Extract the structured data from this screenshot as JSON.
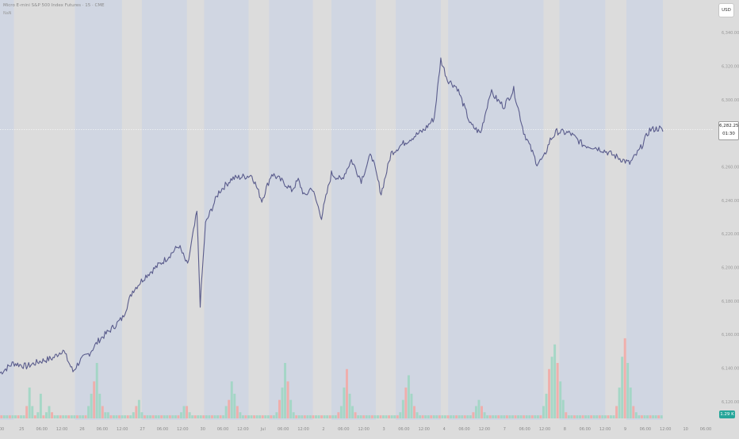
{
  "header": {
    "title": "Micro E-mini S&P 500 Index Futures · 15 · CME",
    "subtitle": "NaN",
    "currency": "USD"
  },
  "last_price": {
    "value": "6,282.25",
    "countdown": "01:30"
  },
  "volume_badge": "1.29 K",
  "colors": {
    "background": "#dcdcdc",
    "session_band": "#d0d6e2",
    "price_line": "#5a5c8c",
    "volume_up": "#9fd6c3",
    "volume_down": "#f2aaa6",
    "badge_green": "#26a69a"
  },
  "chart_data": {
    "type": "line",
    "title": "Micro E-mini S&P 500 Index Futures · 15 · CME",
    "x_tick_labels": [
      "00",
      "25",
      "06:00",
      "12:00",
      "26",
      "06:00",
      "12:00",
      "27",
      "06:00",
      "12:00",
      "30",
      "06:00",
      "12:00",
      "Jul",
      "06:00",
      "12:00",
      "2",
      "06:00",
      "12:00",
      "3",
      "06:00",
      "12:00",
      "4",
      "06:00",
      "12:00",
      "7",
      "06:00",
      "12:00",
      "8",
      "06:00",
      "12:00",
      "9",
      "06:00",
      "12:00",
      "10",
      "06:00"
    ],
    "y_tick_labels": [
      "6,120.00",
      "6,140.00",
      "6,160.00",
      "6,180.00",
      "6,200.00",
      "6,220.00",
      "6,240.00",
      "6,260.00",
      "6,280.00",
      "6,300.00",
      "6,320.00",
      "6,340.00"
    ],
    "ylim": [
      6110,
      6350
    ],
    "y_ticks": [
      6120,
      6140,
      6160,
      6180,
      6200,
      6220,
      6240,
      6260,
      6280,
      6300,
      6320,
      6340
    ],
    "x_range": [
      0,
      100
    ],
    "series": [
      {
        "x": [
          0,
          2,
          4,
          6,
          8,
          9.5,
          11,
          12,
          13.5,
          15,
          17,
          18.5,
          20,
          22,
          25,
          27,
          28.3,
          29.7,
          30.2,
          31,
          33,
          35,
          36.5,
          38,
          39.5,
          41,
          43,
          44,
          45,
          46,
          47,
          48.5,
          50,
          51.5,
          53,
          54.5,
          56,
          57.5,
          59,
          60.5,
          62,
          64,
          65.5,
          66.5,
          67.5,
          69,
          71,
          72.5,
          74,
          75,
          76,
          77.5,
          79,
          81,
          82,
          83,
          84,
          86,
          88,
          89.5,
          91,
          93,
          95,
          96.5,
          98,
          99.5,
          100
        ],
        "y": [
          6137,
          6143,
          6141,
          6144,
          6146,
          6151,
          6138,
          6144,
          6149,
          6157,
          6164,
          6170,
          6186,
          6195,
          6205,
          6213,
          6201,
          6233,
          6178,
          6226,
          6245,
          6253,
          6254,
          6255,
          6240,
          6256,
          6250,
          6246,
          6252,
          6242,
          6248,
          6230,
          6256,
          6252,
          6264,
          6252,
          6268,
          6244,
          6268,
          6273,
          6277,
          6282,
          6289,
          6324,
          6312,
          6307,
          6285,
          6280,
          6305,
          6300,
          6296,
          6306,
          6281,
          6262,
          6265,
          6276,
          6281,
          6280,
          6273,
          6272,
          6270,
          6266,
          6262,
          6270,
          6282,
          6283,
          6281
        ]
      }
    ],
    "volume_max": 1.8,
    "volume": [
      0.05,
      0.05,
      0.05,
      0.05,
      0.05,
      0.05,
      0.05,
      0.05,
      0.05,
      0.2,
      0.5,
      0.2,
      0.05,
      0.1,
      0.4,
      0.05,
      0.1,
      0.2,
      0.1,
      0.05,
      0.05,
      0.05,
      0.05,
      0.05,
      0.05,
      0.05,
      0.05,
      0.05,
      0.05,
      0.05,
      0.05,
      0.2,
      0.4,
      0.6,
      0.9,
      0.4,
      0.2,
      0.1,
      0.1,
      0.05,
      0.05,
      0.05,
      0.05,
      0.05,
      0.05,
      0.05,
      0.05,
      0.1,
      0.2,
      0.3,
      0.1,
      0.05,
      0.05,
      0.05,
      0.05,
      0.05,
      0.05,
      0.05,
      0.05,
      0.05,
      0.05,
      0.05,
      0.05,
      0.05,
      0.1,
      0.2,
      0.2,
      0.1,
      0.05,
      0.05,
      0.05,
      0.05,
      0.05,
      0.05,
      0.05,
      0.05,
      0.05,
      0.05,
      0.05,
      0.05,
      0.2,
      0.3,
      0.6,
      0.4,
      0.2,
      0.1,
      0.05,
      0.05,
      0.05,
      0.05,
      0.05,
      0.05,
      0.05,
      0.05,
      0.05,
      0.05,
      0.05,
      0.05,
      0.1,
      0.3,
      0.5,
      0.9,
      0.6,
      0.3,
      0.1,
      0.05,
      0.05,
      0.05,
      0.05,
      0.05,
      0.05,
      0.05,
      0.05,
      0.05,
      0.05,
      0.05,
      0.05,
      0.05,
      0.05,
      0.05,
      0.1,
      0.2,
      0.5,
      0.8,
      0.4,
      0.2,
      0.1,
      0.05,
      0.05,
      0.05,
      0.05,
      0.05,
      0.05,
      0.05,
      0.05,
      0.05,
      0.05,
      0.05,
      0.05,
      0.05,
      0.05,
      0.05,
      0.1,
      0.3,
      0.5,
      0.7,
      0.4,
      0.2,
      0.1,
      0.05,
      0.05,
      0.05,
      0.05,
      0.05,
      0.05,
      0.05,
      0.05,
      0.05,
      0.05,
      0.05,
      0.05,
      0.05,
      0.05,
      0.05,
      0.05,
      0.05,
      0.05,
      0.05,
      0.1,
      0.2,
      0.3,
      0.2,
      0.1,
      0.05,
      0.05,
      0.05,
      0.05,
      0.05,
      0.05,
      0.05,
      0.05,
      0.05,
      0.05,
      0.05,
      0.05,
      0.05,
      0.05,
      0.05,
      0.05,
      0.05,
      0.05,
      0.05,
      0.05,
      0.2,
      0.4,
      0.8,
      1.0,
      1.2,
      0.9,
      0.6,
      0.3,
      0.1,
      0.05,
      0.05,
      0.05,
      0.05,
      0.05,
      0.05,
      0.05,
      0.05,
      0.05,
      0.05,
      0.05,
      0.05,
      0.05,
      0.05,
      0.05,
      0.05,
      0.05,
      0.2,
      0.5,
      1.0,
      1.3,
      0.9,
      0.5,
      0.2,
      0.1,
      0.05,
      0.05,
      0.05,
      0.05,
      0.05,
      0.05,
      0.05,
      0.05,
      0.05
    ],
    "session_bands": [
      [
        0,
        2.1
      ],
      [
        11.3,
        18.4
      ],
      [
        21.4,
        28.2
      ],
      [
        30.8,
        37.5
      ],
      [
        40.6,
        47.2
      ],
      [
        50.0,
        56.7
      ],
      [
        59.7,
        66.5
      ],
      [
        67.6,
        82.0
      ],
      [
        84.4,
        91.3
      ],
      [
        94.5,
        100
      ]
    ],
    "grid": false
  }
}
